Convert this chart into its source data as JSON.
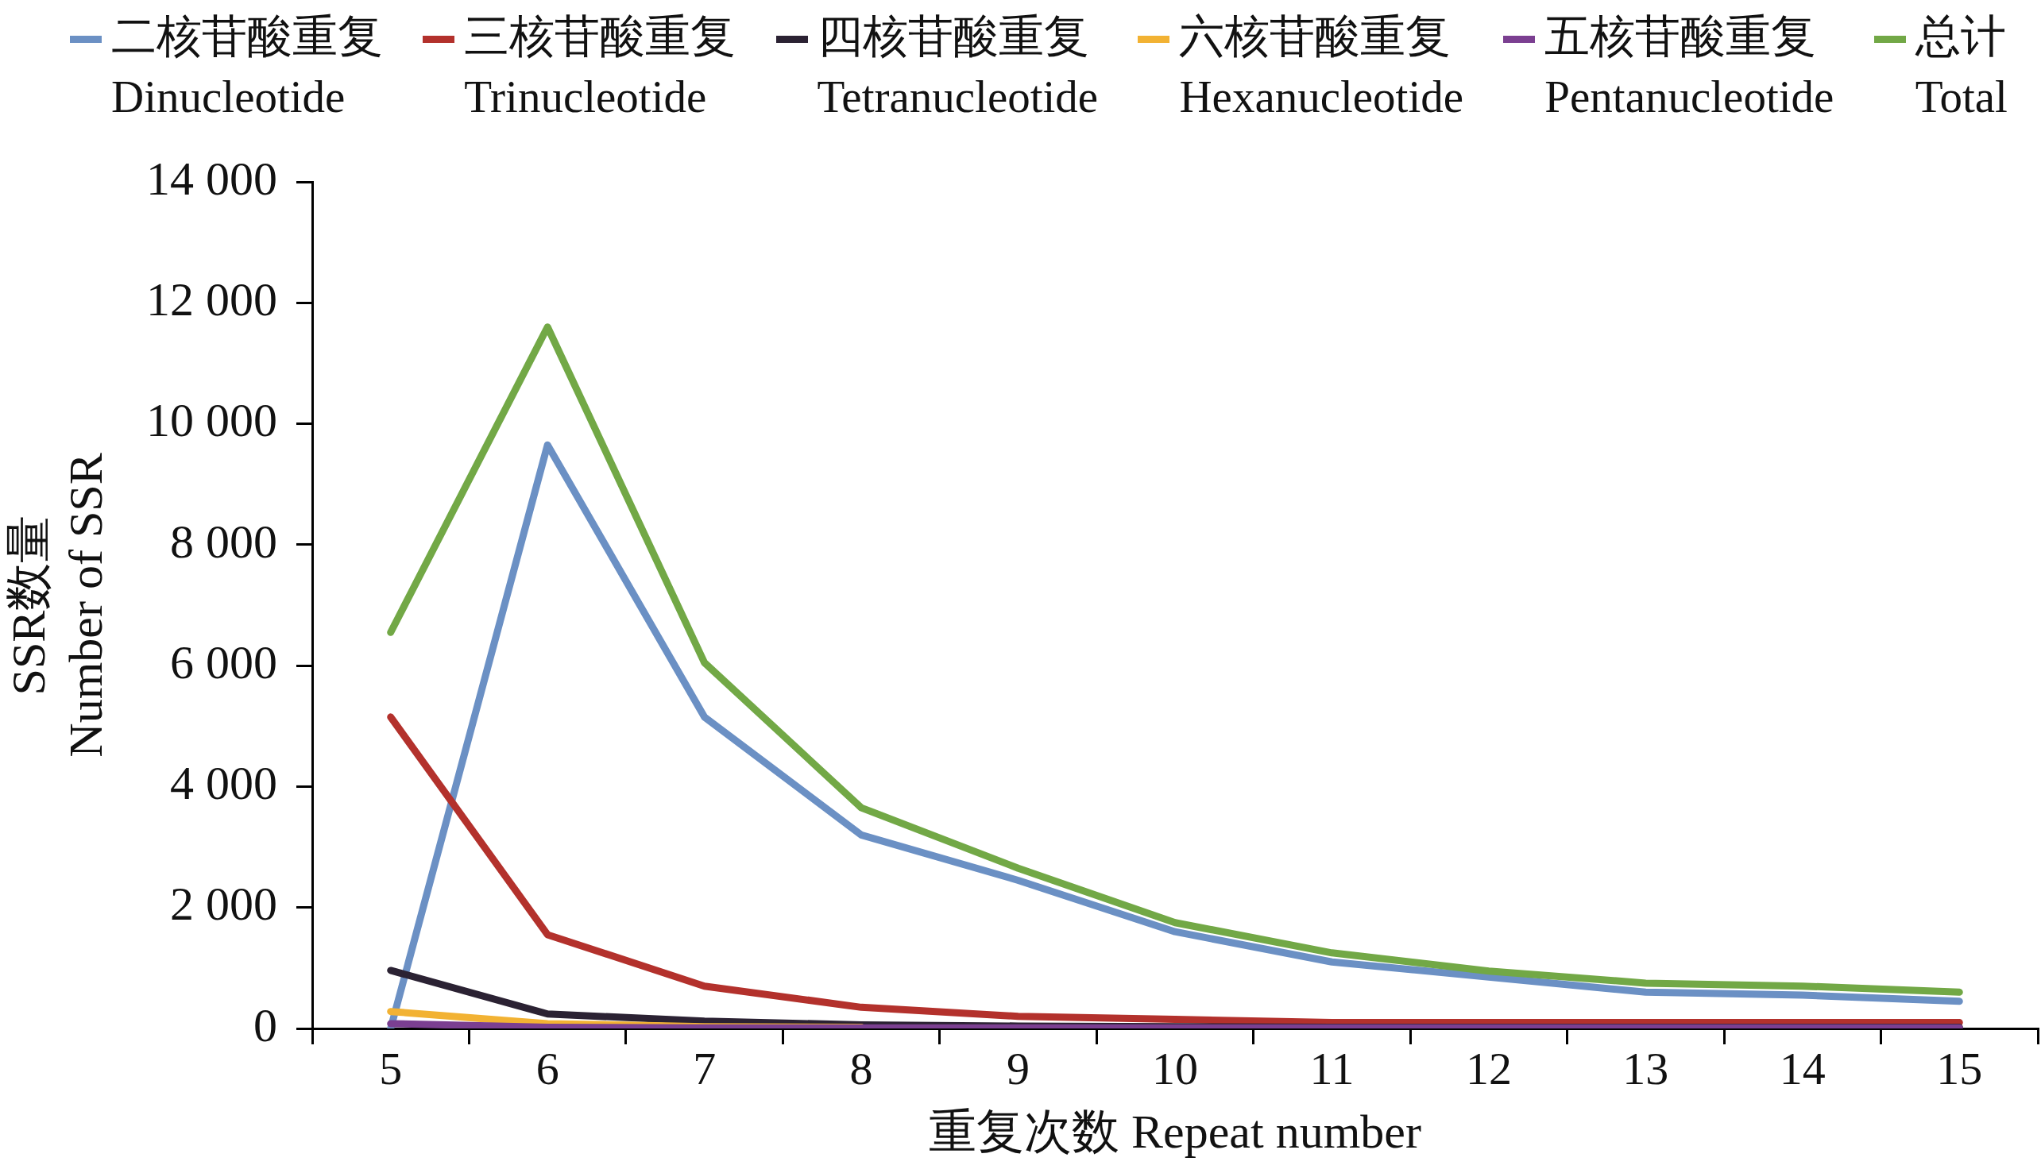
{
  "chart_data": {
    "type": "line",
    "xlabel": "重复次数 Repeat number",
    "ylabel": "SSR数量\nNumber of SSR",
    "categories": [
      "5",
      "6",
      "7",
      "8",
      "9",
      "10",
      "11",
      "12",
      "13",
      "14",
      "15"
    ],
    "series": [
      {
        "name": "二核苷酸重复\nDinucleotide",
        "color": "#6b90c4",
        "values": [
          0,
          9650,
          5150,
          3200,
          2450,
          1600,
          1100,
          850,
          600,
          550,
          450
        ]
      },
      {
        "name": "三核苷酸重复\nTrinucleotide",
        "color": "#b3312c",
        "values": [
          5150,
          1550,
          700,
          350,
          200,
          150,
          100,
          100,
          100,
          100,
          100
        ]
      },
      {
        "name": "四核苷酸重复\nTetranucleotide",
        "color": "#2b2233",
        "values": [
          960,
          240,
          120,
          60,
          40,
          30,
          20,
          20,
          20,
          20,
          20
        ]
      },
      {
        "name": "六核苷酸重复\nHexanucleotide",
        "color": "#f2b233",
        "values": [
          280,
          80,
          30,
          20,
          null,
          null,
          null,
          null,
          null,
          null,
          null
        ]
      },
      {
        "name": "五核苷酸重复\nPentanucleotide",
        "color": "#7b3f91",
        "values": [
          80,
          20,
          10,
          10,
          10,
          10,
          10,
          10,
          10,
          10,
          10
        ]
      },
      {
        "name": "总计\nTotal",
        "color": "#72a846",
        "values": [
          6550,
          11600,
          6050,
          3650,
          2650,
          1750,
          1250,
          950,
          750,
          700,
          600
        ]
      }
    ],
    "ylim": [
      0,
      14000
    ],
    "yticks": [
      0,
      {
        "value": 2000,
        "label": "2 000"
      },
      {
        "value": 4000,
        "label": "4 000"
      },
      {
        "value": 6000,
        "label": "6 000"
      },
      {
        "value": 8000,
        "label": "8 000"
      },
      {
        "value": 10000,
        "label": "10 000"
      },
      {
        "value": 12000,
        "label": "12 000"
      },
      {
        "value": 14000,
        "label": "14 000"
      }
    ],
    "grid": false,
    "legend": "top",
    "marker": "none",
    "line_style": "solid"
  }
}
